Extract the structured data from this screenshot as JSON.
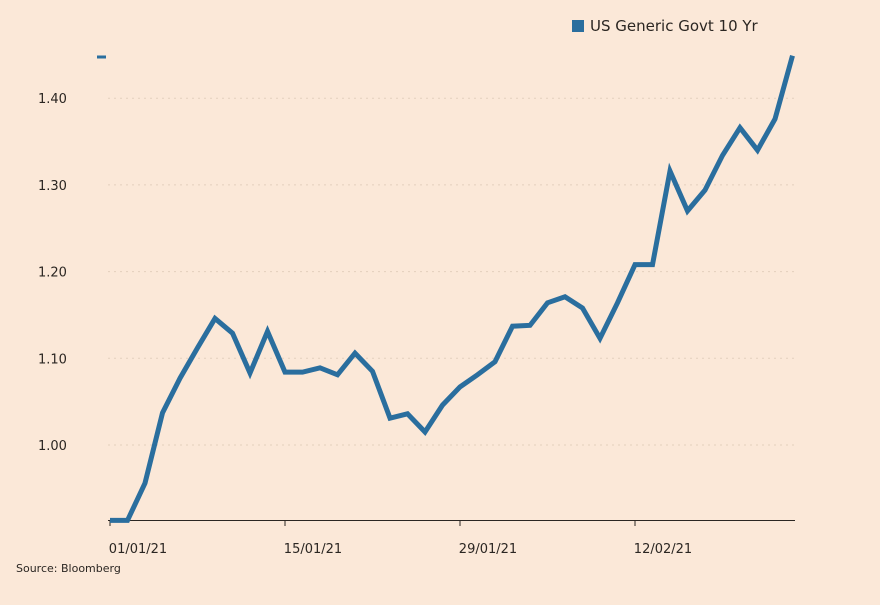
{
  "chart_data": {
    "type": "line",
    "title": "",
    "xlabel": "",
    "ylabel": "",
    "legend": {
      "placement": "top-right",
      "entries": [
        "US Generic Govt 10 Yr"
      ]
    },
    "grid": {
      "horizontal": true,
      "style": "dotted"
    },
    "ylim": [
      0.913,
      1.45
    ],
    "yticks": [
      1.0,
      1.1,
      1.2,
      1.3,
      1.4
    ],
    "ytick_labels": [
      "1.00",
      "1.10",
      "1.20",
      "1.30",
      "1.40"
    ],
    "xticks": [
      "2021-01-01",
      "2021-01-15",
      "2021-01-29",
      "2021-02-12"
    ],
    "xtick_labels": [
      "01/01/21",
      "15/01/21",
      "29/01/21",
      "12/02/21"
    ],
    "x": [
      "2021-01-01",
      "2021-01-04",
      "2021-01-05",
      "2021-01-06",
      "2021-01-07",
      "2021-01-08",
      "2021-01-11",
      "2021-01-12",
      "2021-01-13",
      "2021-01-14",
      "2021-01-15",
      "2021-01-18",
      "2021-01-19",
      "2021-01-20",
      "2021-01-21",
      "2021-01-22",
      "2021-01-25",
      "2021-01-26",
      "2021-01-27",
      "2021-01-28",
      "2021-01-29",
      "2021-02-01",
      "2021-02-02",
      "2021-02-03",
      "2021-02-04",
      "2021-02-05",
      "2021-02-08",
      "2021-02-09",
      "2021-02-10",
      "2021-02-11",
      "2021-02-12",
      "2021-02-15",
      "2021-02-16",
      "2021-02-17",
      "2021-02-18",
      "2021-02-19",
      "2021-02-22",
      "2021-02-23",
      "2021-02-24",
      "2021-02-25"
    ],
    "series": [
      {
        "name": "US Generic Govt 10 Yr",
        "color": "#2a6e9e",
        "values": [
          0.913,
          0.913,
          0.956,
          1.037,
          1.077,
          1.112,
          1.146,
          1.129,
          1.083,
          1.131,
          1.084,
          1.084,
          1.089,
          1.081,
          1.106,
          1.085,
          1.031,
          1.036,
          1.015,
          1.046,
          1.067,
          1.081,
          1.096,
          1.137,
          1.138,
          1.164,
          1.171,
          1.158,
          1.123,
          1.164,
          1.208,
          1.208,
          1.316,
          1.27,
          1.294,
          1.334,
          1.366,
          1.34,
          1.376,
          1.449
        ]
      }
    ]
  },
  "source": "Source: Bloomberg",
  "colors": {
    "background": "#fbe8d8",
    "line": "#2a6e9e",
    "axis": "#2b2622",
    "grid": "#e3cfbd"
  }
}
